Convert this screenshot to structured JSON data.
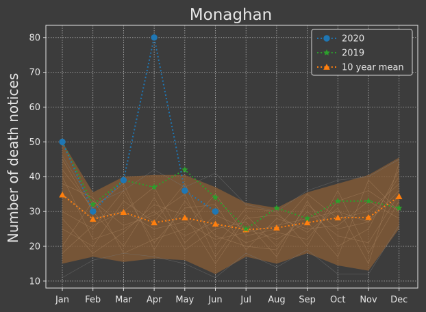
{
  "chart_data": {
    "type": "line",
    "title": "Monaghan",
    "xlabel": "",
    "ylabel": "Number of death notices",
    "categories": [
      "Jan",
      "Feb",
      "Mar",
      "Apr",
      "May",
      "Jun",
      "Jul",
      "Aug",
      "Sep",
      "Oct",
      "Nov",
      "Dec"
    ],
    "ylim": [
      8,
      83.5
    ],
    "yticks": [
      10,
      20,
      30,
      40,
      50,
      60,
      70,
      80
    ],
    "grid": true,
    "legend_position": "top-right",
    "series": [
      {
        "name": "2020",
        "values": [
          50,
          30,
          39,
          80,
          36,
          30,
          null,
          null,
          null,
          null,
          null,
          null
        ],
        "color": "#1f77b4",
        "marker": "circle"
      },
      {
        "name": "2019",
        "values": [
          50,
          32,
          39,
          37,
          42,
          34,
          25,
          31,
          28,
          33,
          33,
          31
        ],
        "color": "#2ca02c",
        "marker": "star"
      },
      {
        "name": "10 year mean",
        "values": [
          34.8,
          27.8,
          29.8,
          26.8,
          28.2,
          26.4,
          24.8,
          25.3,
          26.8,
          28.2,
          28.3,
          34.3
        ],
        "color": "#ff7f0e",
        "marker": "triangle"
      }
    ],
    "range_band": {
      "min": [
        15,
        17,
        15.5,
        16.5,
        16,
        12,
        17,
        15,
        18,
        14.5,
        13,
        25
      ],
      "max": [
        50,
        35.5,
        40,
        40.5,
        40.5,
        37,
        32.5,
        31,
        35.5,
        38,
        40.5,
        45.5
      ],
      "color": "#8a5e36"
    },
    "background_years": [
      [
        35,
        28,
        30,
        25,
        27,
        22,
        24,
        26,
        28,
        30,
        27,
        40
      ],
      [
        40,
        22,
        25,
        30,
        23,
        27,
        21,
        24,
        22,
        33,
        36,
        30
      ],
      [
        20,
        33,
        26,
        29,
        35,
        17,
        29,
        20,
        30,
        23,
        21,
        35
      ],
      [
        30,
        25,
        36,
        21,
        31,
        32,
        19,
        28,
        25,
        26,
        33,
        28
      ],
      [
        45,
        30,
        20,
        34,
        19,
        25,
        27,
        17,
        33,
        20,
        25,
        42
      ],
      [
        25,
        20,
        33,
        27,
        38,
        20,
        31,
        30,
        20,
        36,
        18,
        33
      ],
      [
        38,
        34,
        18,
        22,
        25,
        35,
        23,
        25,
        35,
        28,
        30,
        38
      ],
      [
        18,
        26,
        30,
        37,
        21,
        29,
        25,
        22,
        27,
        17,
        39,
        30
      ],
      [
        28,
        18,
        24,
        32,
        29,
        15,
        28,
        29,
        24,
        31,
        15,
        44
      ],
      [
        42,
        31,
        38,
        19,
        33,
        23,
        20,
        19,
        32,
        25,
        27,
        36
      ]
    ],
    "outer_years": [
      [
        11,
        16,
        18,
        17,
        15,
        11,
        18,
        14,
        19,
        12,
        12,
        26
      ],
      [
        46,
        32,
        36,
        42,
        37,
        41,
        32,
        30,
        36,
        39,
        40,
        45
      ]
    ]
  }
}
